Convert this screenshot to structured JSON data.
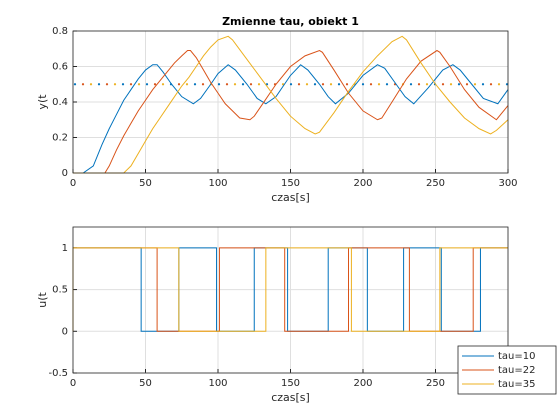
{
  "chart_data": [
    {
      "type": "line",
      "title": "Zmienne tau, obiekt 1",
      "xlabel": "czas[s]",
      "ylabel": "y(t",
      "xlim": [
        0,
        300
      ],
      "xticks": [
        0,
        50,
        100,
        150,
        200,
        250,
        300
      ],
      "ylim": [
        0,
        0.8
      ],
      "yticks": [
        0,
        0.2,
        0.4,
        0.6,
        0.8
      ],
      "grid": true,
      "reference": 0.5,
      "series": [
        {
          "color": "#0072BD",
          "x": [
            0,
            7,
            14,
            20,
            25,
            30,
            35,
            40,
            45,
            50,
            55,
            58,
            62,
            68,
            75,
            83,
            88,
            95,
            100,
            107,
            112,
            120,
            127,
            133,
            140,
            150,
            157,
            162,
            170,
            176,
            181,
            190,
            200,
            210,
            215,
            222,
            229,
            235,
            245,
            255,
            262,
            267,
            275,
            283,
            293,
            300
          ],
          "values": [
            0,
            0,
            0.04,
            0.16,
            0.25,
            0.33,
            0.41,
            0.47,
            0.53,
            0.58,
            0.61,
            0.61,
            0.57,
            0.5,
            0.43,
            0.39,
            0.42,
            0.5,
            0.56,
            0.61,
            0.58,
            0.5,
            0.42,
            0.39,
            0.43,
            0.55,
            0.61,
            0.58,
            0.5,
            0.43,
            0.39,
            0.45,
            0.55,
            0.61,
            0.59,
            0.51,
            0.43,
            0.39,
            0.48,
            0.58,
            0.61,
            0.58,
            0.5,
            0.42,
            0.39,
            0.47
          ]
        },
        {
          "color": "#D95319",
          "x": [
            0,
            22,
            25,
            30,
            35,
            40,
            45,
            50,
            55,
            60,
            65,
            70,
            75,
            79,
            81,
            85,
            90,
            95,
            100,
            105,
            110,
            115,
            122,
            125,
            130,
            140,
            150,
            160,
            170,
            172,
            180,
            190,
            200,
            210,
            213,
            220,
            230,
            240,
            251,
            253,
            260,
            270,
            280,
            292,
            300
          ],
          "values": [
            0,
            0,
            0.04,
            0.13,
            0.21,
            0.28,
            0.35,
            0.41,
            0.47,
            0.52,
            0.57,
            0.62,
            0.66,
            0.69,
            0.69,
            0.65,
            0.58,
            0.51,
            0.45,
            0.39,
            0.35,
            0.31,
            0.3,
            0.32,
            0.38,
            0.5,
            0.6,
            0.66,
            0.69,
            0.68,
            0.58,
            0.45,
            0.35,
            0.3,
            0.31,
            0.4,
            0.53,
            0.63,
            0.69,
            0.68,
            0.6,
            0.47,
            0.37,
            0.3,
            0.38
          ]
        },
        {
          "color": "#EDB120",
          "x": [
            0,
            35,
            40,
            45,
            50,
            55,
            60,
            65,
            70,
            75,
            80,
            85,
            90,
            95,
            100,
            107,
            110,
            120,
            130,
            140,
            150,
            160,
            167,
            170,
            180,
            190,
            200,
            210,
            220,
            227,
            230,
            240,
            250,
            260,
            270,
            280,
            288,
            292,
            300
          ],
          "values": [
            0,
            0,
            0.04,
            0.11,
            0.18,
            0.25,
            0.31,
            0.37,
            0.43,
            0.49,
            0.54,
            0.6,
            0.66,
            0.71,
            0.75,
            0.77,
            0.75,
            0.64,
            0.53,
            0.42,
            0.32,
            0.25,
            0.22,
            0.23,
            0.34,
            0.46,
            0.57,
            0.66,
            0.74,
            0.77,
            0.75,
            0.62,
            0.5,
            0.4,
            0.31,
            0.25,
            0.22,
            0.24,
            0.3
          ]
        }
      ]
    },
    {
      "type": "line",
      "xlabel": "czas[s]",
      "ylabel": "u(t",
      "xlim": [
        0,
        300
      ],
      "xticks": [
        0,
        50,
        100,
        150,
        200,
        250,
        300
      ],
      "ylim": [
        -0.5,
        1.25
      ],
      "yticks": [
        -0.5,
        0,
        0.5,
        1
      ],
      "grid": true,
      "legend": "southeast",
      "series": [
        {
          "name": "tau=10",
          "color": "#0072BD",
          "x": [
            0,
            0,
            47,
            47,
            73,
            73,
            99,
            99,
            125,
            125,
            148,
            148,
            176,
            176,
            203,
            203,
            228,
            228,
            254,
            254,
            281,
            281,
            300
          ],
          "values": [
            0,
            1,
            1,
            0,
            0,
            1,
            1,
            0,
            0,
            1,
            1,
            0,
            0,
            1,
            1,
            0,
            0,
            1,
            1,
            0,
            0,
            1,
            1
          ]
        },
        {
          "name": "tau=22",
          "color": "#D95319",
          "x": [
            0,
            0,
            58,
            58,
            101,
            101,
            146,
            146,
            190,
            190,
            232,
            232,
            276,
            276,
            300
          ],
          "values": [
            0,
            1,
            1,
            0,
            0,
            1,
            1,
            0,
            0,
            1,
            1,
            0,
            0,
            1,
            1
          ]
        },
        {
          "name": "tau=35",
          "color": "#EDB120",
          "x": [
            0,
            0,
            73,
            73,
            133,
            133,
            192,
            192,
            253,
            253,
            300
          ],
          "values": [
            0,
            1,
            1,
            0,
            0,
            1,
            1,
            0,
            0,
            1,
            1
          ]
        }
      ]
    }
  ]
}
